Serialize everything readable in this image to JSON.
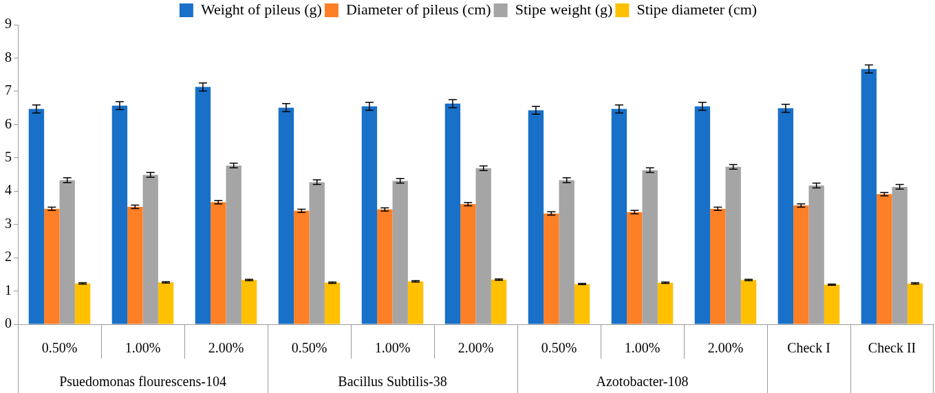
{
  "chart_data": {
    "type": "bar",
    "categories": [
      "0.50%",
      "1.00%",
      "2.00%",
      "0.50%",
      "1.00%",
      "2.00%",
      "0.50%",
      "1.00%",
      "2.00%",
      "Check I",
      "Check II"
    ],
    "annotations": [
      "Psuedomonas flourescens-104",
      "Bacillus Subtilis-38",
      "Azotobacter-108"
    ],
    "series": [
      {
        "name": "Weight of pileus (g)",
        "color": "#1870c8",
        "values": [
          6.47,
          6.57,
          7.13,
          6.51,
          6.55,
          6.63,
          6.43,
          6.47,
          6.55,
          6.49,
          7.67
        ],
        "errors": [
          0.12,
          0.12,
          0.12,
          0.12,
          0.12,
          0.12,
          0.12,
          0.12,
          0.12,
          0.12,
          0.12
        ]
      },
      {
        "name": "Diameter of pileus (cm)",
        "color": "#fd7f26",
        "values": [
          3.47,
          3.53,
          3.67,
          3.41,
          3.45,
          3.61,
          3.33,
          3.37,
          3.47,
          3.57,
          3.91
        ],
        "errors": [
          0.05,
          0.05,
          0.05,
          0.05,
          0.05,
          0.05,
          0.05,
          0.05,
          0.05,
          0.05,
          0.05
        ]
      },
      {
        "name": "Stipe weight (g)",
        "color": "#a5a5a5",
        "values": [
          4.33,
          4.49,
          4.77,
          4.27,
          4.31,
          4.69,
          4.33,
          4.63,
          4.73,
          4.17,
          4.13
        ],
        "errors": [
          0.07,
          0.07,
          0.07,
          0.07,
          0.07,
          0.07,
          0.07,
          0.07,
          0.07,
          0.07,
          0.07
        ]
      },
      {
        "name": "Stipe diameter (cm)",
        "color": "#ffc000",
        "values": [
          1.23,
          1.26,
          1.33,
          1.25,
          1.29,
          1.34,
          1.21,
          1.25,
          1.33,
          1.19,
          1.23
        ],
        "errors": [
          0.02,
          0.02,
          0.02,
          0.02,
          0.02,
          0.02,
          0.02,
          0.02,
          0.02,
          0.02,
          0.02
        ]
      }
    ],
    "ylim": [
      0,
      9
    ],
    "yticks": [
      0,
      1,
      2,
      3,
      4,
      5,
      6,
      7,
      8,
      9
    ],
    "grid": false,
    "legend": "top"
  }
}
